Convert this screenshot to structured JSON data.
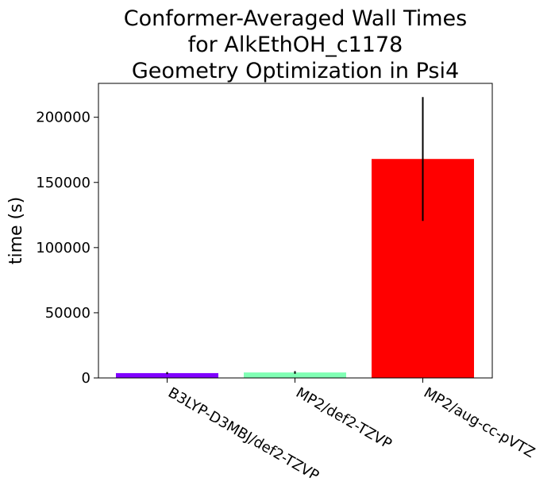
{
  "chart_data": {
    "type": "bar",
    "title": [
      "Conformer-Averaged Wall Times",
      "for AlkEthOH_c1178",
      "Geometry Optimization in Psi4"
    ],
    "xlabel": "",
    "ylabel": "time (s)",
    "categories": [
      "B3LYP-D3MBJ/def2-TZVP",
      "MP2/def2-TZVP",
      "MP2/aug-cc-pVTZ"
    ],
    "values": [
      3700,
      4200,
      168000
    ],
    "errors": [
      800,
      1000,
      47500
    ],
    "colors": [
      "#8000ff",
      "#80ffb4",
      "#ff0000"
    ],
    "ylim": [
      0,
      226000
    ],
    "yticks": [
      0,
      50000,
      100000,
      150000,
      200000
    ],
    "ytick_labels": [
      "0",
      "50000",
      "100000",
      "150000",
      "200000"
    ],
    "grid": false
  }
}
